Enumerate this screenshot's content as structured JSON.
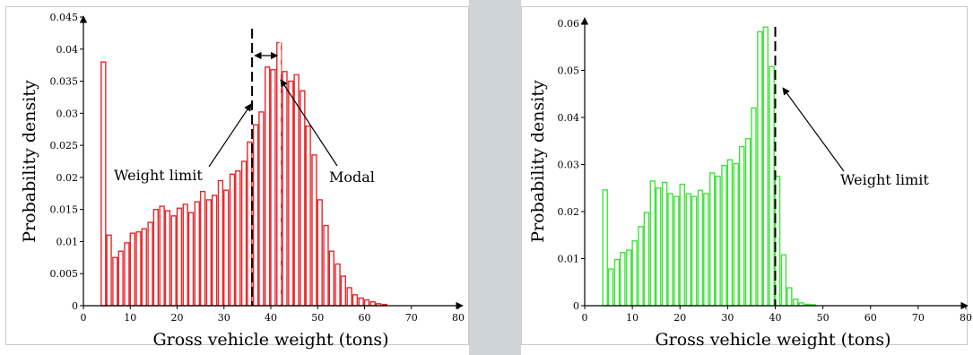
{
  "chart_data": [
    {
      "type": "bar",
      "xlabel": "Gross vehicle weight (tons)",
      "ylabel": "Probability density",
      "xlim": [
        0,
        80
      ],
      "ylim": [
        0,
        0.045
      ],
      "xticks": [
        "0",
        "10",
        "20",
        "30",
        "40",
        "50",
        "60",
        "70",
        "80"
      ],
      "yticks": [
        "0",
        "0.005",
        "0.01",
        "0.015",
        "0.02",
        "0.025",
        "0.03",
        "0.035",
        "0.04",
        "0.045"
      ],
      "color": "#e8262b",
      "bin_width": 1.25,
      "x": [
        3.8,
        5.0,
        6.3,
        7.5,
        8.8,
        10.0,
        11.3,
        12.5,
        13.8,
        15.0,
        16.3,
        17.5,
        18.8,
        20.0,
        21.3,
        22.5,
        23.8,
        25.0,
        26.3,
        27.5,
        28.8,
        30.0,
        31.3,
        32.5,
        33.8,
        35.0,
        36.3,
        37.5,
        38.8,
        40.0,
        41.3,
        42.5,
        43.8,
        45.0,
        46.3,
        47.5,
        48.8,
        50.0,
        51.3,
        52.5,
        53.8,
        55.0,
        56.3,
        57.5,
        58.8,
        60.0,
        61.3,
        62.5,
        63.8
      ],
      "values": [
        0.038,
        0.011,
        0.0075,
        0.0085,
        0.0098,
        0.0113,
        0.0115,
        0.012,
        0.013,
        0.015,
        0.0155,
        0.0148,
        0.014,
        0.0152,
        0.0158,
        0.0145,
        0.0162,
        0.0178,
        0.0165,
        0.0172,
        0.0195,
        0.018,
        0.0205,
        0.021,
        0.0225,
        0.0255,
        0.0282,
        0.0302,
        0.0372,
        0.0368,
        0.041,
        0.0365,
        0.035,
        0.036,
        0.0335,
        0.028,
        0.0235,
        0.0165,
        0.0125,
        0.0085,
        0.0065,
        0.0046,
        0.0028,
        0.0017,
        0.0012,
        0.0009,
        0.0006,
        0.0003,
        0.0002
      ],
      "reference_lines": [
        {
          "x": 36,
          "label": "Weight limit"
        },
        {
          "x": 42,
          "label": "Modal"
        }
      ]
    },
    {
      "type": "bar",
      "xlabel": "Gross vehicle weight (tons)",
      "ylabel": "Probability density",
      "xlim": [
        0,
        80
      ],
      "ylim": [
        0,
        0.06
      ],
      "xticks": [
        "0",
        "10",
        "20",
        "30",
        "40",
        "50",
        "60",
        "70",
        "80"
      ],
      "yticks": [
        "0",
        "0.01",
        "0.02",
        "0.03",
        "0.04",
        "0.05",
        "0.06"
      ],
      "color": "#3ee43a",
      "bin_width": 1.25,
      "x": [
        3.8,
        5.0,
        6.3,
        7.5,
        8.8,
        10.0,
        11.3,
        12.5,
        13.8,
        15.0,
        16.3,
        17.5,
        18.8,
        20.0,
        21.3,
        22.5,
        23.8,
        25.0,
        26.3,
        27.5,
        28.8,
        30.0,
        31.3,
        32.5,
        33.8,
        35.0,
        36.3,
        37.5,
        38.8,
        40.0,
        41.3,
        42.5,
        43.8,
        45.0,
        46.3,
        47.5
      ],
      "values": [
        0.0246,
        0.0078,
        0.0098,
        0.0113,
        0.0118,
        0.0138,
        0.0168,
        0.0198,
        0.0265,
        0.025,
        0.0262,
        0.0238,
        0.0232,
        0.0258,
        0.0238,
        0.0232,
        0.0245,
        0.0238,
        0.0282,
        0.0275,
        0.0298,
        0.031,
        0.0302,
        0.0338,
        0.0355,
        0.042,
        0.0582,
        0.0592,
        0.0508,
        0.0275,
        0.0108,
        0.0038,
        0.0014,
        0.0006,
        0.0003,
        0.0002
      ],
      "reference_lines": [
        {
          "x": 40,
          "label": "Weight limit"
        }
      ]
    }
  ]
}
